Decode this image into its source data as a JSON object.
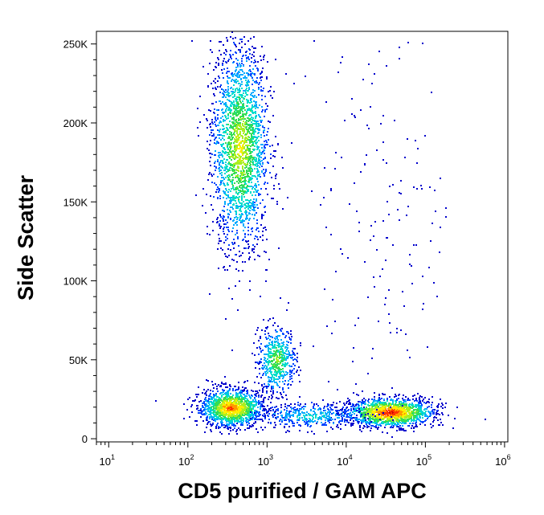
{
  "chart_data": {
    "type": "scatter",
    "title": "",
    "xlabel": "CD5 purified / GAM APC",
    "ylabel": "Side Scatter",
    "x_scale": "log",
    "xlim": [
      7,
      1100000.0
    ],
    "ylim": [
      -2000,
      258000
    ],
    "x_ticks": [
      {
        "base": "10",
        "exp": "1",
        "value": 10
      },
      {
        "base": "10",
        "exp": "2",
        "value": 100
      },
      {
        "base": "10",
        "exp": "3",
        "value": 1000
      },
      {
        "base": "10",
        "exp": "4",
        "value": 10000
      },
      {
        "base": "10",
        "exp": "5",
        "value": 100000
      },
      {
        "base": "10",
        "exp": "6",
        "value": 1000000
      }
    ],
    "y_ticks": [
      {
        "label": "0",
        "value": 0
      },
      {
        "label": "50K",
        "value": 50000
      },
      {
        "label": "100K",
        "value": 100000
      },
      {
        "label": "150K",
        "value": 150000
      },
      {
        "label": "200K",
        "value": 200000
      },
      {
        "label": "250K",
        "value": 250000
      }
    ],
    "grid": false,
    "colormap": [
      "#0000cc",
      "#0044ff",
      "#00aaff",
      "#00ddcc",
      "#33dd55",
      "#aaee22",
      "#ffee00",
      "#ff9900",
      "#ff3300",
      "#cc0000"
    ],
    "populations": [
      {
        "x_center": 450,
        "y_center": 185000,
        "x_spread_decades": 0.18,
        "y_spread": 32000,
        "points": 2200,
        "peak_level": 6
      },
      {
        "x_center": 350,
        "y_center": 20000,
        "x_spread_decades": 0.2,
        "y_spread": 6000,
        "points": 1400,
        "peak_level": 8
      },
      {
        "x_center": 1300,
        "y_center": 50000,
        "x_spread_decades": 0.12,
        "y_spread": 11000,
        "points": 550,
        "peak_level": 5
      },
      {
        "x_center": 35000,
        "y_center": 17000,
        "x_spread_decades": 0.28,
        "y_spread": 4500,
        "points": 1500,
        "peak_level": 9
      },
      {
        "x_center": 3500,
        "y_center": 15000,
        "x_spread_decades": 0.35,
        "y_spread": 4000,
        "points": 400,
        "peak_level": 3
      },
      {
        "x_center": 30000,
        "y_center": 140000,
        "x_spread_decades": 0.45,
        "y_spread": 60000,
        "points": 160,
        "peak_level": 0
      }
    ]
  }
}
